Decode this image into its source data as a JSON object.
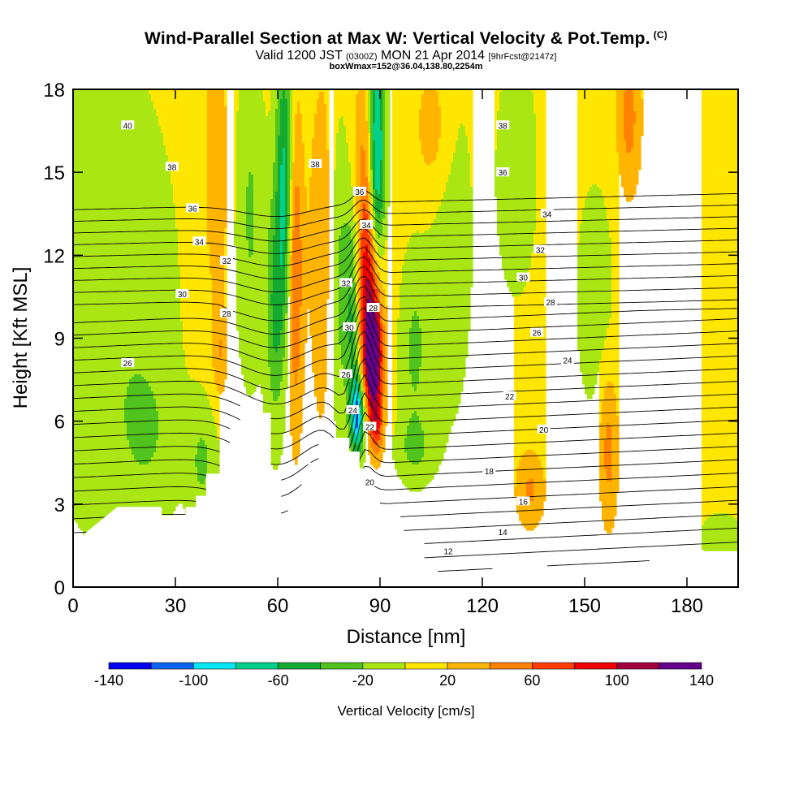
{
  "header": {
    "title": "Wind-Parallel Section at Max W: Vertical Velocity & Pot.Temp.",
    "title_mark": "(C)",
    "valid_prefix": "Valid 1200 JST",
    "valid_utc": "(0300Z)",
    "valid_date": "MON 21 Apr 2014",
    "forecast": "[9hrFcst@2147z]",
    "box_info": "boxWmax=152@36.04,138.80,2254m"
  },
  "colors": {
    "palette": [
      "#0000f0",
      "#0a64f0",
      "#00e6f5",
      "#00d08c",
      "#14aa32",
      "#50c31e",
      "#aae614",
      "#ffe600",
      "#ffb400",
      "#ff8200",
      "#ff3c00",
      "#f00000",
      "#a0003c",
      "#64008c"
    ],
    "terrain": "#ffffff",
    "contour": "#000000"
  },
  "chart_data": {
    "type": "heatmap",
    "title": "Wind-Parallel Section at Max W: Vertical Velocity & Pot.Temp.",
    "xlabel": "Distance [nm]",
    "ylabel": "Height [Kft MSL]",
    "xlim": [
      0,
      195
    ],
    "ylim": [
      0,
      18
    ],
    "x_ticks": [
      0,
      30,
      60,
      90,
      120,
      150,
      180
    ],
    "y_ticks": [
      0,
      3,
      6,
      9,
      12,
      15,
      18
    ],
    "colorbar": {
      "label": "Vertical Velocity [cm/s]",
      "levels": [
        -140,
        -120,
        -100,
        -80,
        -60,
        -40,
        -20,
        0,
        20,
        40,
        60,
        80,
        100,
        120,
        140
      ],
      "tick_labels": [
        -140,
        -100,
        -60,
        -20,
        20,
        60,
        100,
        140
      ]
    },
    "terrain_profile": [
      [
        0,
        1.5
      ],
      [
        4,
        2.0
      ],
      [
        7,
        2.3
      ],
      [
        10,
        2.6
      ],
      [
        13,
        2.9
      ],
      [
        26,
        2.9
      ],
      [
        26,
        2.6
      ],
      [
        33,
        2.6
      ],
      [
        33,
        2.9
      ],
      [
        36,
        2.9
      ],
      [
        36,
        3.3
      ],
      [
        39,
        3.3
      ],
      [
        39,
        4.1
      ],
      [
        43,
        4.1
      ],
      [
        43,
        4.9
      ],
      [
        46,
        4.9
      ],
      [
        46,
        6.0
      ],
      [
        49,
        6.0
      ],
      [
        49,
        6.7
      ],
      [
        55,
        6.7
      ],
      [
        55,
        6.3
      ],
      [
        58,
        6.3
      ],
      [
        58,
        4.2
      ],
      [
        61,
        4.2
      ],
      [
        61,
        2.6
      ],
      [
        63,
        2.6
      ],
      [
        63,
        3.3
      ],
      [
        67,
        3.3
      ],
      [
        67,
        4.2
      ],
      [
        69,
        4.2
      ],
      [
        69,
        4.5
      ],
      [
        72,
        4.5
      ],
      [
        72,
        5.4
      ],
      [
        81,
        5.4
      ],
      [
        81,
        4.9
      ],
      [
        84,
        4.9
      ],
      [
        84,
        4.3
      ],
      [
        87,
        4.3
      ],
      [
        87,
        3.3
      ],
      [
        90,
        3.3
      ],
      [
        90,
        2.9
      ],
      [
        96,
        2.9
      ],
      [
        96,
        2.5
      ],
      [
        97,
        2.5
      ],
      [
        97,
        2.0
      ],
      [
        100,
        2.0
      ],
      [
        100,
        1.7
      ],
      [
        103,
        1.7
      ],
      [
        103,
        1.0
      ],
      [
        105,
        1.0
      ],
      [
        105,
        0.7
      ],
      [
        107,
        0.7
      ],
      [
        107,
        0.4
      ],
      [
        109,
        0.4
      ],
      [
        109,
        0.3
      ],
      [
        120,
        0.3
      ],
      [
        120,
        0.6
      ],
      [
        123,
        0.6
      ],
      [
        123,
        0.9
      ],
      [
        139,
        0.9
      ],
      [
        139,
        0.6
      ],
      [
        166,
        0.6
      ],
      [
        166,
        0.9
      ],
      [
        169,
        0.9
      ],
      [
        169,
        1.3
      ],
      [
        195,
        1.3
      ]
    ],
    "w_features": [
      {
        "cx": 88,
        "cy": 8.2,
        "sx": 1.8,
        "sy": 1.3,
        "w": 140
      },
      {
        "cx": 87.5,
        "cy": 10.5,
        "sx": 2.4,
        "sy": 2.0,
        "w": 70
      },
      {
        "cx": 86,
        "cy": 13.5,
        "sx": 2.5,
        "sy": 3.5,
        "w": 55
      },
      {
        "cx": 89,
        "cy": 5.8,
        "sx": 1.5,
        "sy": 0.8,
        "w": 60
      },
      {
        "cx": 83.5,
        "cy": 6.2,
        "sx": 1.4,
        "sy": 1.0,
        "w": -110
      },
      {
        "cx": 82,
        "cy": 10.0,
        "sx": 1.6,
        "sy": 3.0,
        "w": -55
      },
      {
        "cx": 89,
        "cy": 15.5,
        "sx": 1.7,
        "sy": 3.5,
        "w": -110
      },
      {
        "cx": 62,
        "cy": 14.5,
        "sx": 1.8,
        "sy": 4.0,
        "w": -75
      },
      {
        "cx": 59,
        "cy": 10.0,
        "sx": 1.8,
        "sy": 3.0,
        "w": -45
      },
      {
        "cx": 65,
        "cy": 11.5,
        "sx": 1.6,
        "sy": 4.0,
        "w": 60
      },
      {
        "cx": 73,
        "cy": 12.0,
        "sx": 3.0,
        "sy": 5.0,
        "w": 25
      },
      {
        "cx": 78,
        "cy": 11.0,
        "sx": 2.0,
        "sy": 4.0,
        "w": -35
      },
      {
        "cx": 52,
        "cy": 13.5,
        "sx": 3.0,
        "sy": 4.0,
        "w": -30
      },
      {
        "cx": 42,
        "cy": 15.0,
        "sx": 2.5,
        "sy": 3.5,
        "w": 30
      },
      {
        "cx": 10,
        "cy": 10.5,
        "sx": 14,
        "sy": 6.0,
        "w": -25
      },
      {
        "cx": 22,
        "cy": 5.5,
        "sx": 6,
        "sy": 2.0,
        "w": -20
      },
      {
        "cx": 38,
        "cy": 4.5,
        "sx": 3,
        "sy": 1.5,
        "w": -30
      },
      {
        "cx": 100,
        "cy": 8.5,
        "sx": 3,
        "sy": 2.5,
        "w": -30
      },
      {
        "cx": 110,
        "cy": 13.0,
        "sx": 5,
        "sy": 5.0,
        "w": -22
      },
      {
        "cx": 130,
        "cy": 15.0,
        "sx": 4,
        "sy": 3.0,
        "w": -25
      },
      {
        "cx": 106,
        "cy": 16.5,
        "sx": 4,
        "sy": 2.0,
        "w": 30
      },
      {
        "cx": 163,
        "cy": 17.0,
        "sx": 2.5,
        "sy": 2.0,
        "w": 40
      },
      {
        "cx": 153,
        "cy": 10.5,
        "sx": 4,
        "sy": 3.0,
        "w": -20
      },
      {
        "cx": 157,
        "cy": 5.0,
        "sx": 2.0,
        "sy": 2.0,
        "w": 40
      },
      {
        "cx": 134,
        "cy": 3.5,
        "sx": 3,
        "sy": 1.0,
        "w": 35
      },
      {
        "cx": 100,
        "cy": 5.0,
        "sx": 4,
        "sy": 0.8,
        "w": -25
      },
      {
        "cx": 43,
        "cy": 8.5,
        "sx": 1.5,
        "sy": 1.2,
        "w": 30
      },
      {
        "cx": 190,
        "cy": 1.8,
        "sx": 4,
        "sy": 0.6,
        "w": -25
      }
    ],
    "theta_contours": {
      "min": 11,
      "max": 41,
      "step": 1,
      "units": "K"
    },
    "contour_labels": [
      {
        "x": 16,
        "y": 16.7,
        "text": "40"
      },
      {
        "x": 29,
        "y": 15.2,
        "text": "38"
      },
      {
        "x": 35,
        "y": 13.7,
        "text": "36"
      },
      {
        "x": 37,
        "y": 12.5,
        "text": "34"
      },
      {
        "x": 45,
        "y": 11.8,
        "text": "32"
      },
      {
        "x": 32,
        "y": 10.6,
        "text": "30"
      },
      {
        "x": 45,
        "y": 9.9,
        "text": "28"
      },
      {
        "x": 16,
        "y": 8.1,
        "text": "26"
      },
      {
        "x": 71,
        "y": 15.3,
        "text": "38"
      },
      {
        "x": 84,
        "y": 14.3,
        "text": "36"
      },
      {
        "x": 86,
        "y": 13.1,
        "text": "34"
      },
      {
        "x": 80,
        "y": 11.0,
        "text": "32"
      },
      {
        "x": 88,
        "y": 10.1,
        "text": "28"
      },
      {
        "x": 81,
        "y": 9.4,
        "text": "30"
      },
      {
        "x": 80,
        "y": 7.7,
        "text": "26"
      },
      {
        "x": 82,
        "y": 6.4,
        "text": "24"
      },
      {
        "x": 87,
        "y": 5.8,
        "text": "22"
      },
      {
        "x": 87,
        "y": 3.8,
        "text": "20"
      },
      {
        "x": 126,
        "y": 16.7,
        "text": "38"
      },
      {
        "x": 126,
        "y": 15.0,
        "text": "36"
      },
      {
        "x": 139,
        "y": 13.5,
        "text": "34"
      },
      {
        "x": 137,
        "y": 12.2,
        "text": "32"
      },
      {
        "x": 132,
        "y": 11.2,
        "text": "30"
      },
      {
        "x": 140,
        "y": 10.3,
        "text": "28"
      },
      {
        "x": 136,
        "y": 9.2,
        "text": "26"
      },
      {
        "x": 145,
        "y": 8.2,
        "text": "24"
      },
      {
        "x": 128,
        "y": 6.9,
        "text": "22"
      },
      {
        "x": 138,
        "y": 5.7,
        "text": "20"
      },
      {
        "x": 122,
        "y": 4.2,
        "text": "18"
      },
      {
        "x": 132,
        "y": 3.1,
        "text": "16"
      },
      {
        "x": 126,
        "y": 2.0,
        "text": "14"
      },
      {
        "x": 110,
        "y": 1.3,
        "text": "12"
      }
    ]
  }
}
